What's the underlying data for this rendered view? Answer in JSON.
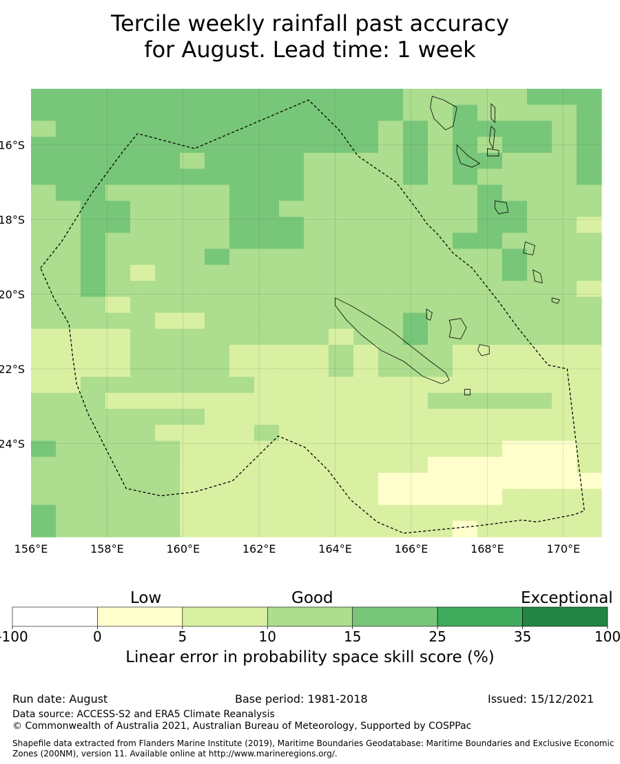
{
  "title_line1": "Tercile weekly rainfall past accuracy",
  "title_line2": "for August. Lead time: 1 week",
  "map": {
    "lon_min": 156,
    "lon_max": 171,
    "lat_min": -26.5,
    "lat_max": -14.5,
    "lon_ticks": [
      "156°E",
      "158°E",
      "160°E",
      "162°E",
      "164°E",
      "166°E",
      "168°E",
      "170°E"
    ],
    "lat_ticks": [
      "16°S",
      "18°S",
      "20°S",
      "22°S",
      "24°S"
    ],
    "grid": true,
    "cell_size_deg": 0.833,
    "score_grid": [
      "44444444444444433333444",
      "44444444444444433433334",
      "34444444444444343444434",
      "44444444444444343434434",
      "44444434444333343443334",
      "44444444444333343433334",
      "34433333444333333343333",
      "33443333443333333344333",
      "33443333444333333344332",
      "33433333444333333443333",
      "33433334333333333334333",
      "33432333333333333334333",
      "33433333333333333333332",
      "33323333333333333333333",
      "33333223333333343333333",
      "22223333333323343333333",
      "22223333222232333222222",
      "22223333222232333222222",
      "22333333322222222222222",
      "33322222222222223333322",
      "33333332222222222222222",
      "33333222232222222222222",
      "43333322222222222221112",
      "33333322222222221111112",
      "33333322222222111111111",
      "33333322222222111112222",
      "43333322222222222222222",
      "43333322222222222122222"
    ],
    "boundary_lonlat": [
      [
        156.25,
        -19.3
      ],
      [
        156.8,
        -18.6
      ],
      [
        157.6,
        -17.3
      ],
      [
        158.4,
        -16.2
      ],
      [
        158.8,
        -15.7
      ],
      [
        160.3,
        -16.1
      ],
      [
        163.3,
        -14.8
      ],
      [
        164.1,
        -15.6
      ],
      [
        164.6,
        -16.3
      ],
      [
        165.6,
        -17.0
      ],
      [
        165.9,
        -17.4
      ],
      [
        166.2,
        -17.8
      ],
      [
        166.4,
        -18.1
      ],
      [
        166.7,
        -18.4
      ],
      [
        167.1,
        -18.9
      ],
      [
        167.6,
        -19.3
      ],
      [
        168.3,
        -20.2
      ],
      [
        168.8,
        -20.9
      ],
      [
        169.2,
        -21.4
      ],
      [
        169.6,
        -21.9
      ],
      [
        170.1,
        -22.0
      ],
      [
        170.3,
        -23.7
      ],
      [
        170.55,
        -25.8
      ],
      [
        170.3,
        -25.9
      ],
      [
        169.8,
        -26.0
      ],
      [
        169.3,
        -26.1
      ],
      [
        168.9,
        -26.05
      ],
      [
        167.8,
        -26.2
      ],
      [
        165.8,
        -26.4
      ],
      [
        165.1,
        -26.1
      ],
      [
        164.4,
        -25.5
      ],
      [
        163.8,
        -24.7
      ],
      [
        163.2,
        -24.1
      ],
      [
        162.5,
        -23.8
      ],
      [
        161.9,
        -24.4
      ],
      [
        161.3,
        -25.0
      ],
      [
        160.3,
        -25.3
      ],
      [
        159.4,
        -25.4
      ],
      [
        158.5,
        -25.2
      ],
      [
        158.0,
        -24.2
      ],
      [
        157.5,
        -23.2
      ],
      [
        157.2,
        -22.4
      ],
      [
        157.1,
        -21.7
      ],
      [
        157.0,
        -20.8
      ],
      [
        156.6,
        -20.1
      ]
    ],
    "islands": [
      {
        "name": "grande-terre",
        "pts": [
          [
            164.0,
            -20.1
          ],
          [
            164.4,
            -20.3
          ],
          [
            164.9,
            -20.6
          ],
          [
            165.5,
            -21.0
          ],
          [
            166.0,
            -21.4
          ],
          [
            166.5,
            -21.8
          ],
          [
            166.9,
            -22.1
          ],
          [
            167.0,
            -22.3
          ],
          [
            166.8,
            -22.4
          ],
          [
            166.3,
            -22.2
          ],
          [
            165.8,
            -21.8
          ],
          [
            165.2,
            -21.5
          ],
          [
            164.7,
            -21.1
          ],
          [
            164.3,
            -20.7
          ],
          [
            164.0,
            -20.3
          ]
        ]
      },
      {
        "name": "lifou",
        "pts": [
          [
            167.0,
            -20.7
          ],
          [
            167.3,
            -20.65
          ],
          [
            167.45,
            -20.9
          ],
          [
            167.3,
            -21.2
          ],
          [
            167.0,
            -21.15
          ],
          [
            167.05,
            -20.9
          ]
        ]
      },
      {
        "name": "mare",
        "pts": [
          [
            167.8,
            -21.35
          ],
          [
            168.05,
            -21.4
          ],
          [
            168.05,
            -21.6
          ],
          [
            167.85,
            -21.65
          ],
          [
            167.75,
            -21.5
          ]
        ]
      },
      {
        "name": "ouvea",
        "pts": [
          [
            166.4,
            -20.4
          ],
          [
            166.55,
            -20.5
          ],
          [
            166.5,
            -20.7
          ],
          [
            166.4,
            -20.65
          ]
        ]
      },
      {
        "name": "isle-of-pines",
        "pts": [
          [
            167.4,
            -22.55
          ],
          [
            167.55,
            -22.55
          ],
          [
            167.55,
            -22.7
          ],
          [
            167.4,
            -22.7
          ]
        ]
      },
      {
        "name": "espiritu-santo",
        "pts": [
          [
            166.55,
            -14.7
          ],
          [
            166.85,
            -14.8
          ],
          [
            167.2,
            -15.0
          ],
          [
            167.1,
            -15.5
          ],
          [
            166.9,
            -15.6
          ],
          [
            166.6,
            -15.3
          ],
          [
            166.5,
            -15.0
          ]
        ]
      },
      {
        "name": "malekula",
        "pts": [
          [
            167.2,
            -16.0
          ],
          [
            167.5,
            -16.3
          ],
          [
            167.8,
            -16.5
          ],
          [
            167.6,
            -16.6
          ],
          [
            167.3,
            -16.5
          ],
          [
            167.2,
            -16.2
          ]
        ]
      },
      {
        "name": "maewo",
        "pts": [
          [
            168.1,
            -14.9
          ],
          [
            168.2,
            -15.0
          ],
          [
            168.2,
            -15.4
          ],
          [
            168.1,
            -15.3
          ]
        ]
      },
      {
        "name": "pentecost",
        "pts": [
          [
            168.1,
            -15.5
          ],
          [
            168.2,
            -15.6
          ],
          [
            168.15,
            -16.1
          ],
          [
            168.05,
            -15.9
          ]
        ]
      },
      {
        "name": "ambrym",
        "pts": [
          [
            168.0,
            -16.1
          ],
          [
            168.3,
            -16.15
          ],
          [
            168.3,
            -16.3
          ],
          [
            168.0,
            -16.3
          ]
        ]
      },
      {
        "name": "efate",
        "pts": [
          [
            168.2,
            -17.5
          ],
          [
            168.5,
            -17.55
          ],
          [
            168.55,
            -17.8
          ],
          [
            168.3,
            -17.85
          ],
          [
            168.2,
            -17.7
          ]
        ]
      },
      {
        "name": "erromango",
        "pts": [
          [
            169.0,
            -18.6
          ],
          [
            169.25,
            -18.7
          ],
          [
            169.2,
            -18.95
          ],
          [
            168.95,
            -18.9
          ]
        ]
      },
      {
        "name": "tanna",
        "pts": [
          [
            169.2,
            -19.35
          ],
          [
            169.4,
            -19.45
          ],
          [
            169.45,
            -19.7
          ],
          [
            169.25,
            -19.65
          ]
        ]
      },
      {
        "name": "aneityum",
        "pts": [
          [
            169.7,
            -20.1
          ],
          [
            169.9,
            -20.15
          ],
          [
            169.85,
            -20.25
          ],
          [
            169.7,
            -20.2
          ]
        ]
      }
    ]
  },
  "colorbar": {
    "colors": [
      "#ffffff",
      "#ffffcc",
      "#d9f0a3",
      "#addd8e",
      "#78c679",
      "#41ab5d",
      "#238443"
    ],
    "tick_labels": [
      "-100",
      "0",
      "5",
      "10",
      "15",
      "25",
      "35",
      "100"
    ],
    "categories": [
      "Low",
      "Good",
      "Exceptional"
    ],
    "label": "Linear error in probability space skill score (%)"
  },
  "footer": {
    "run_date": "Run date: August",
    "base_period": "Base period: 1981-2018",
    "issued": "Issued: 15/12/2021",
    "data_source": "Data source: ACCESS-S2 and ERA5 Climate Reanalysis",
    "copyright": "© Commonwealth of Australia 2021, Australian Bureau of Meteorology, Supported by COSPPac",
    "shapefile_line1": "Shapefile data extracted from Flanders Marine Institute (2019), Maritime Boundaries Geodatabase: Maritime Boundaries and Exclusive Economic",
    "shapefile_line2": "Zones (200NM), version 11. Available online at http://www.marineregions.org/."
  }
}
